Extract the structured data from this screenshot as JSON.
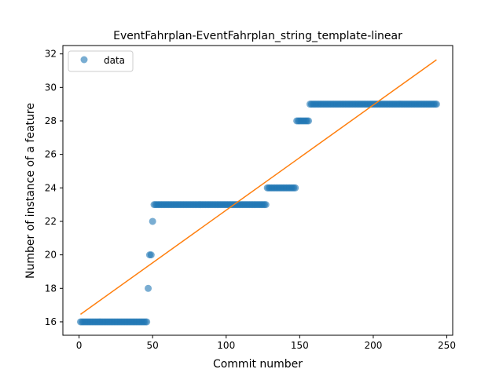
{
  "chart_data": {
    "type": "scatter",
    "title": "EventFahrplan-EventFahrplan_string_template-linear",
    "xlabel": "Commit number",
    "ylabel": "Number of instance of a feature",
    "xlim": [
      -11,
      254
    ],
    "ylim": [
      15.2,
      32.5
    ],
    "xticks": [
      0,
      50,
      100,
      150,
      200,
      250
    ],
    "yticks": [
      16,
      18,
      20,
      22,
      24,
      26,
      28,
      30,
      32
    ],
    "legend": {
      "position": "top-left",
      "entries": [
        "data"
      ]
    },
    "grid": false,
    "colors": {
      "data": "#1f77b4",
      "fit": "#ff7f0e"
    },
    "series": [
      {
        "name": "data",
        "kind": "points",
        "segments": [
          {
            "x_start": 1,
            "x_end": 46,
            "y": 16
          },
          {
            "x": 47,
            "y": 18
          },
          {
            "x": 48,
            "y": 20
          },
          {
            "x": 49,
            "y": 20
          },
          {
            "x": 50,
            "y": 22
          },
          {
            "x_start": 51,
            "x_end": 127,
            "y": 23
          },
          {
            "x_start": 128,
            "x_end": 147,
            "y": 24
          },
          {
            "x_start": 148,
            "x_end": 156,
            "y": 28
          },
          {
            "x_start": 157,
            "x_end": 243,
            "y": 29
          }
        ]
      },
      {
        "kind": "line",
        "x": [
          1,
          243
        ],
        "y": [
          16.45,
          31.65
        ]
      }
    ]
  }
}
